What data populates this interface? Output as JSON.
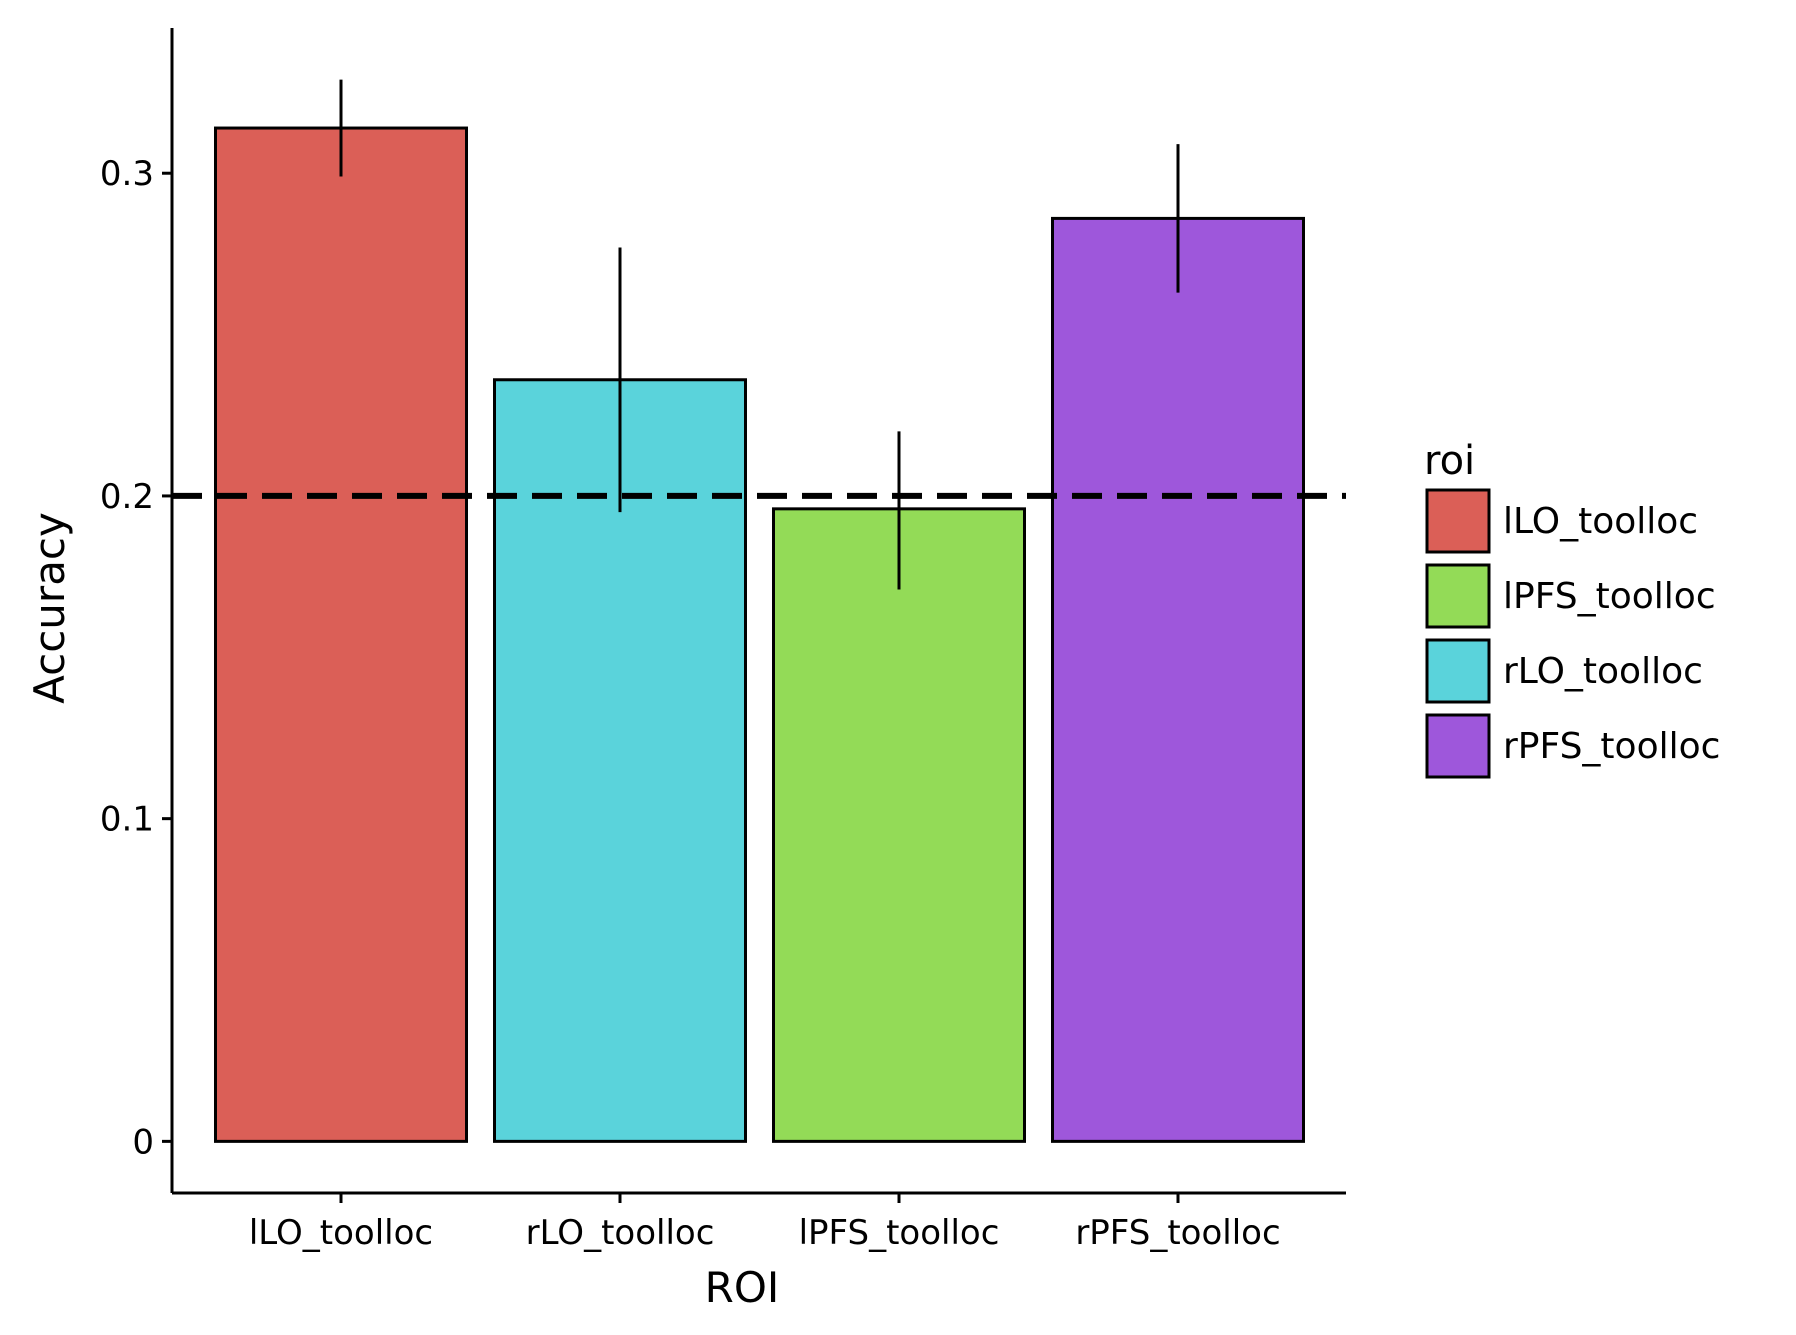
{
  "chart_data": {
    "type": "bar",
    "categories": [
      "lLO_toolloc",
      "rLO_toolloc",
      "lPFS_toolloc",
      "rPFS_toolloc"
    ],
    "values": [
      0.314,
      0.236,
      0.196,
      0.286
    ],
    "error_low": [
      0.299,
      0.195,
      0.171,
      0.263
    ],
    "error_high": [
      0.329,
      0.277,
      0.22,
      0.309
    ],
    "reference_line": 0.2,
    "xlabel": "ROI",
    "ylabel": "Accuracy",
    "ylim": [
      -0.016,
      0.345
    ],
    "yticks": [
      0,
      0.1,
      0.2,
      0.3
    ],
    "ytick_labels": [
      "0",
      "0.1",
      "0.2",
      "0.3"
    ],
    "grid": false,
    "legend": {
      "title": "roi",
      "placement": "right",
      "entries": [
        "lLO_toolloc",
        "lPFS_toolloc",
        "rLO_toolloc",
        "rPFS_toolloc"
      ]
    },
    "colors": {
      "lLO_toolloc": "#DB5F57",
      "rLO_toolloc": "#5AD3DB",
      "lPFS_toolloc": "#93DB57",
      "rPFS_toolloc": "#9E57DB"
    }
  }
}
